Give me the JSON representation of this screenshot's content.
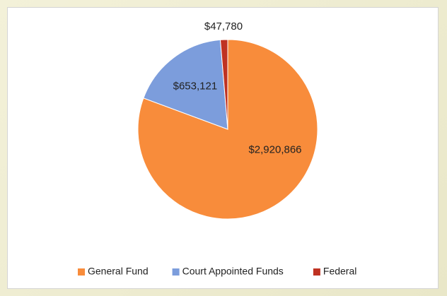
{
  "chart_data": {
    "type": "pie",
    "categories": [
      "General Fund",
      "Court Appointed Funds",
      "Federal"
    ],
    "values": [
      2920866,
      653121,
      47780
    ],
    "value_labels": [
      "$2,920,866",
      "$653,121",
      "$47,780"
    ],
    "colors": [
      "#f88c3b",
      "#7c9ddc",
      "#bf3222"
    ],
    "legend": "bottom"
  }
}
